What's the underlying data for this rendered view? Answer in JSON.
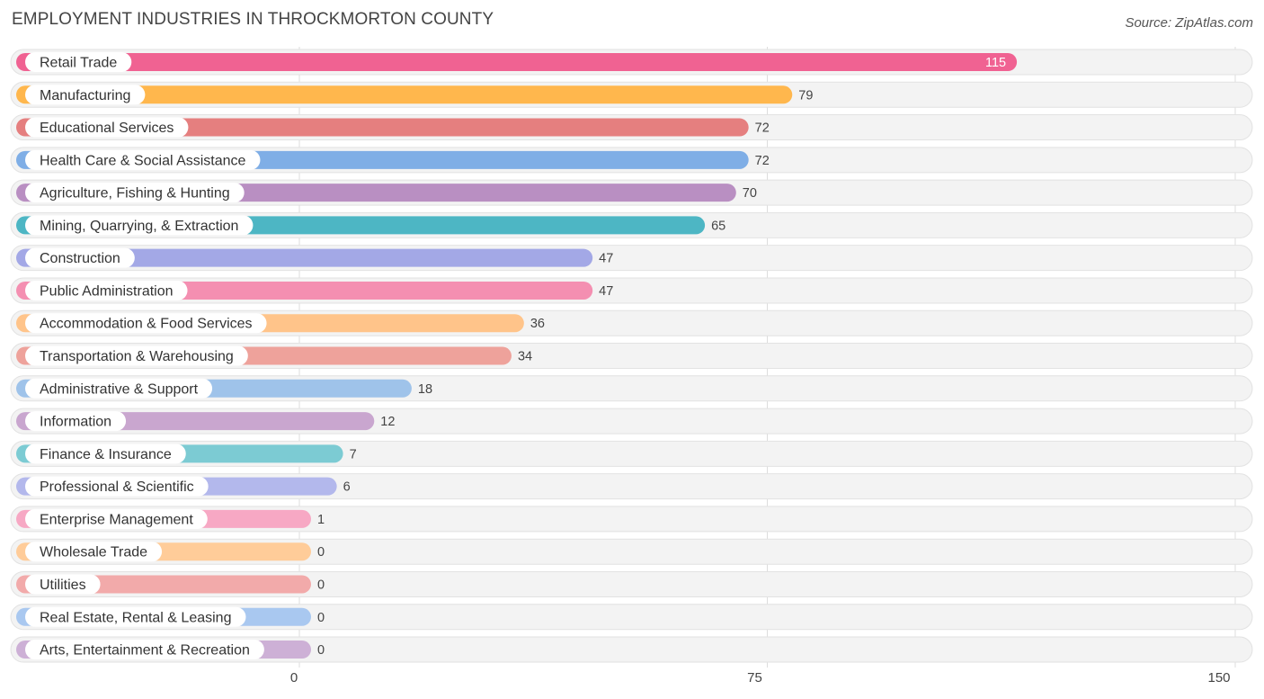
{
  "header": {
    "title": "EMPLOYMENT INDUSTRIES IN THROCKMORTON COUNTY",
    "source": "Source: ZipAtlas.com"
  },
  "chart_data": {
    "type": "bar",
    "orientation": "horizontal",
    "title": "EMPLOYMENT INDUSTRIES IN THROCKMORTON COUNTY",
    "xlabel": "",
    "ylabel": "",
    "xlim": [
      0,
      150
    ],
    "ticks": [
      0,
      75,
      150
    ],
    "grid": true,
    "categories": [
      "Retail Trade",
      "Manufacturing",
      "Educational Services",
      "Health Care & Social Assistance",
      "Agriculture, Fishing & Hunting",
      "Mining, Quarrying, & Extraction",
      "Construction",
      "Public Administration",
      "Accommodation & Food Services",
      "Transportation & Warehousing",
      "Administrative & Support",
      "Information",
      "Finance & Insurance",
      "Professional & Scientific",
      "Enterprise Management",
      "Wholesale Trade",
      "Utilities",
      "Real Estate, Rental & Leasing",
      "Arts, Entertainment & Recreation"
    ],
    "values": [
      115,
      79,
      72,
      72,
      70,
      65,
      47,
      47,
      36,
      34,
      18,
      12,
      7,
      6,
      1,
      0,
      0,
      0,
      0
    ],
    "colors": [
      "#f06292",
      "#ffb74d",
      "#e57f7f",
      "#7faee6",
      "#b98fc2",
      "#4db6c4",
      "#a3a8e6",
      "#f48fb1",
      "#ffc48a",
      "#eea29b",
      "#9fc3ea",
      "#c9a6cf",
      "#7ccbd3",
      "#b3b8ec",
      "#f7a8c4",
      "#ffcc99",
      "#f2aaaa",
      "#a9c8f0",
      "#cdb0d6"
    ]
  }
}
